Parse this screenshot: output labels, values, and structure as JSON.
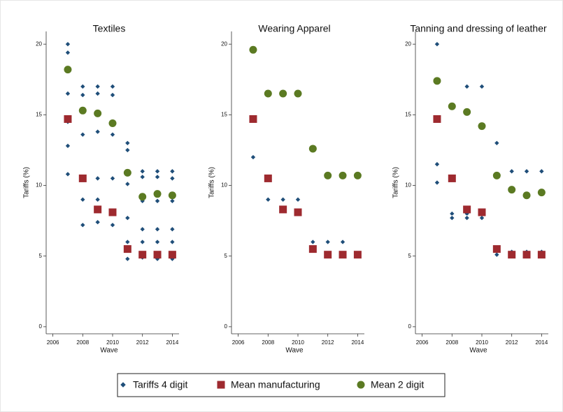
{
  "chart_data": [
    {
      "type": "scatter",
      "title": "Textiles",
      "x_label": "Wave",
      "y_label": "Tariffs (%)",
      "xlim": [
        2005.55,
        2014.45
      ],
      "ylim": [
        -0.5,
        20.9
      ],
      "xticks": [
        2006,
        2008,
        2010,
        2012,
        2014
      ],
      "yticks": [
        0,
        5,
        10,
        15,
        20
      ],
      "series": [
        {
          "name": "Tariffs 4 digit",
          "color": "#1f4e79",
          "marker": "diamond",
          "x": [
            2007,
            2007,
            2007,
            2007,
            2007,
            2007,
            2008,
            2008,
            2008,
            2008,
            2008,
            2008,
            2009,
            2009,
            2009,
            2009,
            2009,
            2009,
            2010,
            2010,
            2010,
            2010,
            2010,
            2011,
            2011,
            2011,
            2011,
            2011,
            2011,
            2012,
            2012,
            2012,
            2012,
            2012,
            2012,
            2012,
            2013,
            2013,
            2013,
            2013,
            2013,
            2013,
            2013,
            2014,
            2014,
            2014,
            2014,
            2014,
            2014,
            2014
          ],
          "values": [
            20,
            19.4,
            16.5,
            14.5,
            12.8,
            10.8,
            17,
            16.4,
            13.6,
            10.5,
            9,
            7.2,
            17,
            16.5,
            13.8,
            10.5,
            9,
            7.4,
            17,
            16.4,
            13.6,
            10.5,
            7.2,
            13,
            12.5,
            10.1,
            7.7,
            6,
            4.8,
            11,
            10.6,
            8.9,
            6.9,
            6,
            5,
            4.9,
            11,
            10.6,
            8.9,
            6.9,
            6,
            5,
            4.8,
            11,
            10.5,
            8.9,
            6.9,
            6,
            5,
            4.8
          ]
        },
        {
          "name": "Mean manufacturing",
          "color": "#9e2a2f",
          "marker": "square",
          "x": [
            2007,
            2008,
            2009,
            2010,
            2011,
            2012,
            2013,
            2014
          ],
          "values": [
            14.7,
            10.5,
            8.3,
            8.1,
            5.5,
            5.1,
            5.1,
            5.1
          ]
        },
        {
          "name": "Mean 2 digit",
          "color": "#5b7a22",
          "marker": "circle",
          "x": [
            2007,
            2008,
            2009,
            2010,
            2011,
            2012,
            2013,
            2014
          ],
          "values": [
            18.2,
            15.3,
            15.1,
            14.4,
            10.9,
            9.2,
            9.4,
            9.3
          ]
        }
      ]
    },
    {
      "type": "scatter",
      "title": "Wearing Apparel",
      "x_label": "Wave",
      "y_label": "Tariffs (%)",
      "xlim": [
        2005.55,
        2014.45
      ],
      "ylim": [
        -0.5,
        20.9
      ],
      "xticks": [
        2006,
        2008,
        2010,
        2012,
        2014
      ],
      "yticks": [
        0,
        5,
        10,
        15,
        20
      ],
      "series": [
        {
          "x": [
            2007,
            2008,
            2009,
            2010,
            2011,
            2012,
            2013
          ],
          "values": [
            12,
            9,
            9,
            9,
            6,
            6,
            6
          ]
        },
        {
          "x": [
            2007,
            2008,
            2009,
            2010,
            2011,
            2012,
            2013,
            2014
          ],
          "values": [
            14.7,
            10.5,
            8.3,
            8.1,
            5.5,
            5.1,
            5.1,
            5.1
          ]
        },
        {
          "x": [
            2007,
            2008,
            2009,
            2010,
            2011,
            2012,
            2013,
            2014
          ],
          "values": [
            19.6,
            16.5,
            16.5,
            16.5,
            12.6,
            10.7,
            10.7,
            10.7
          ]
        }
      ]
    },
    {
      "type": "scatter",
      "title": "Tanning and dressing of leather",
      "x_label": "Wave",
      "y_label": "Tariffs (%)",
      "xlim": [
        2005.55,
        2014.45
      ],
      "ylim": [
        -0.5,
        20.9
      ],
      "xticks": [
        2006,
        2008,
        2010,
        2012,
        2014
      ],
      "yticks": [
        0,
        5,
        10,
        15,
        20
      ],
      "series": [
        {
          "x": [
            2007,
            2007,
            2007,
            2008,
            2008,
            2009,
            2009,
            2009,
            2010,
            2010,
            2011,
            2011,
            2012,
            2012,
            2013,
            2013,
            2014,
            2014
          ],
          "values": [
            20,
            11.5,
            10.2,
            8,
            7.7,
            17,
            8,
            7.7,
            17,
            7.7,
            13,
            5.1,
            11,
            5.3,
            11,
            5.3,
            11,
            5.3
          ]
        },
        {
          "x": [
            2007,
            2008,
            2009,
            2010,
            2011,
            2012,
            2013,
            2014
          ],
          "values": [
            14.7,
            10.5,
            8.3,
            8.1,
            5.5,
            5.1,
            5.1,
            5.1
          ]
        },
        {
          "x": [
            2007,
            2008,
            2009,
            2010,
            2011,
            2012,
            2013,
            2014
          ],
          "values": [
            17.4,
            15.6,
            15.2,
            14.2,
            10.7,
            9.7,
            9.3,
            9.5
          ]
        }
      ]
    }
  ]
}
